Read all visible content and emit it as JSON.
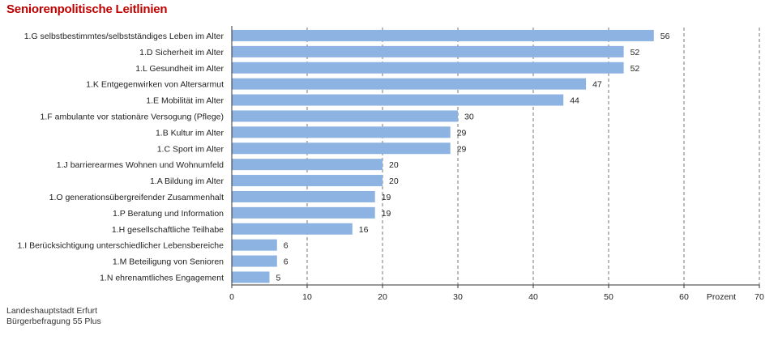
{
  "title": "Seniorenpolitische Leitlinien",
  "footer": {
    "line1": "Landeshauptstadt Erfurt",
    "line2": "Bürgerbefragung 55 Plus"
  },
  "colors": {
    "bar": "#8db3e2",
    "title": "#c00000",
    "grid": "#555555"
  },
  "chart_data": {
    "type": "bar",
    "orientation": "horizontal",
    "title": "Seniorenpolitische Leitlinien",
    "xlabel": "Prozent",
    "ylabel": "",
    "xlim": [
      0,
      70
    ],
    "ticks": [
      0,
      10,
      20,
      30,
      40,
      50,
      60,
      70
    ],
    "tick_labels": [
      "0",
      "10",
      "20",
      "30",
      "40",
      "50",
      "60",
      "70"
    ],
    "grid": "vertical dashed",
    "categories": [
      "1.G selbstbestimmtes/selbstständiges Leben im Alter",
      "1.D Sicherheit im Alter",
      "1.L Gesundheit im Alter",
      "1.K Entgegenwirken von Altersarmut",
      "1.E Mobilität im Alter",
      "1.F ambulante vor stationäre Versogung (Pflege)",
      "1.B Kultur im Alter",
      "1.C Sport im Alter",
      "1.J barrierearmes Wohnen und Wohnumfeld",
      "1.A Bildung im Alter",
      "1.O generationsübergreifender Zusammenhalt",
      "1.P Beratung und Information",
      "1.H gesellschaftliche Teilhabe",
      "1.I Berücksichtigung unterschiedlicher Lebensbereiche",
      "1.M Beteiligung von Senioren",
      "1.N ehrenamtliches Engagement"
    ],
    "values": [
      56,
      52,
      52,
      47,
      44,
      30,
      29,
      29,
      20,
      20,
      19,
      19,
      16,
      6,
      6,
      5
    ],
    "value_labels": [
      "56",
      "52",
      "52",
      "47",
      "44",
      "30",
      "29",
      "29",
      "20",
      "20",
      "19",
      "19",
      "16",
      "6",
      "6",
      "5"
    ]
  }
}
